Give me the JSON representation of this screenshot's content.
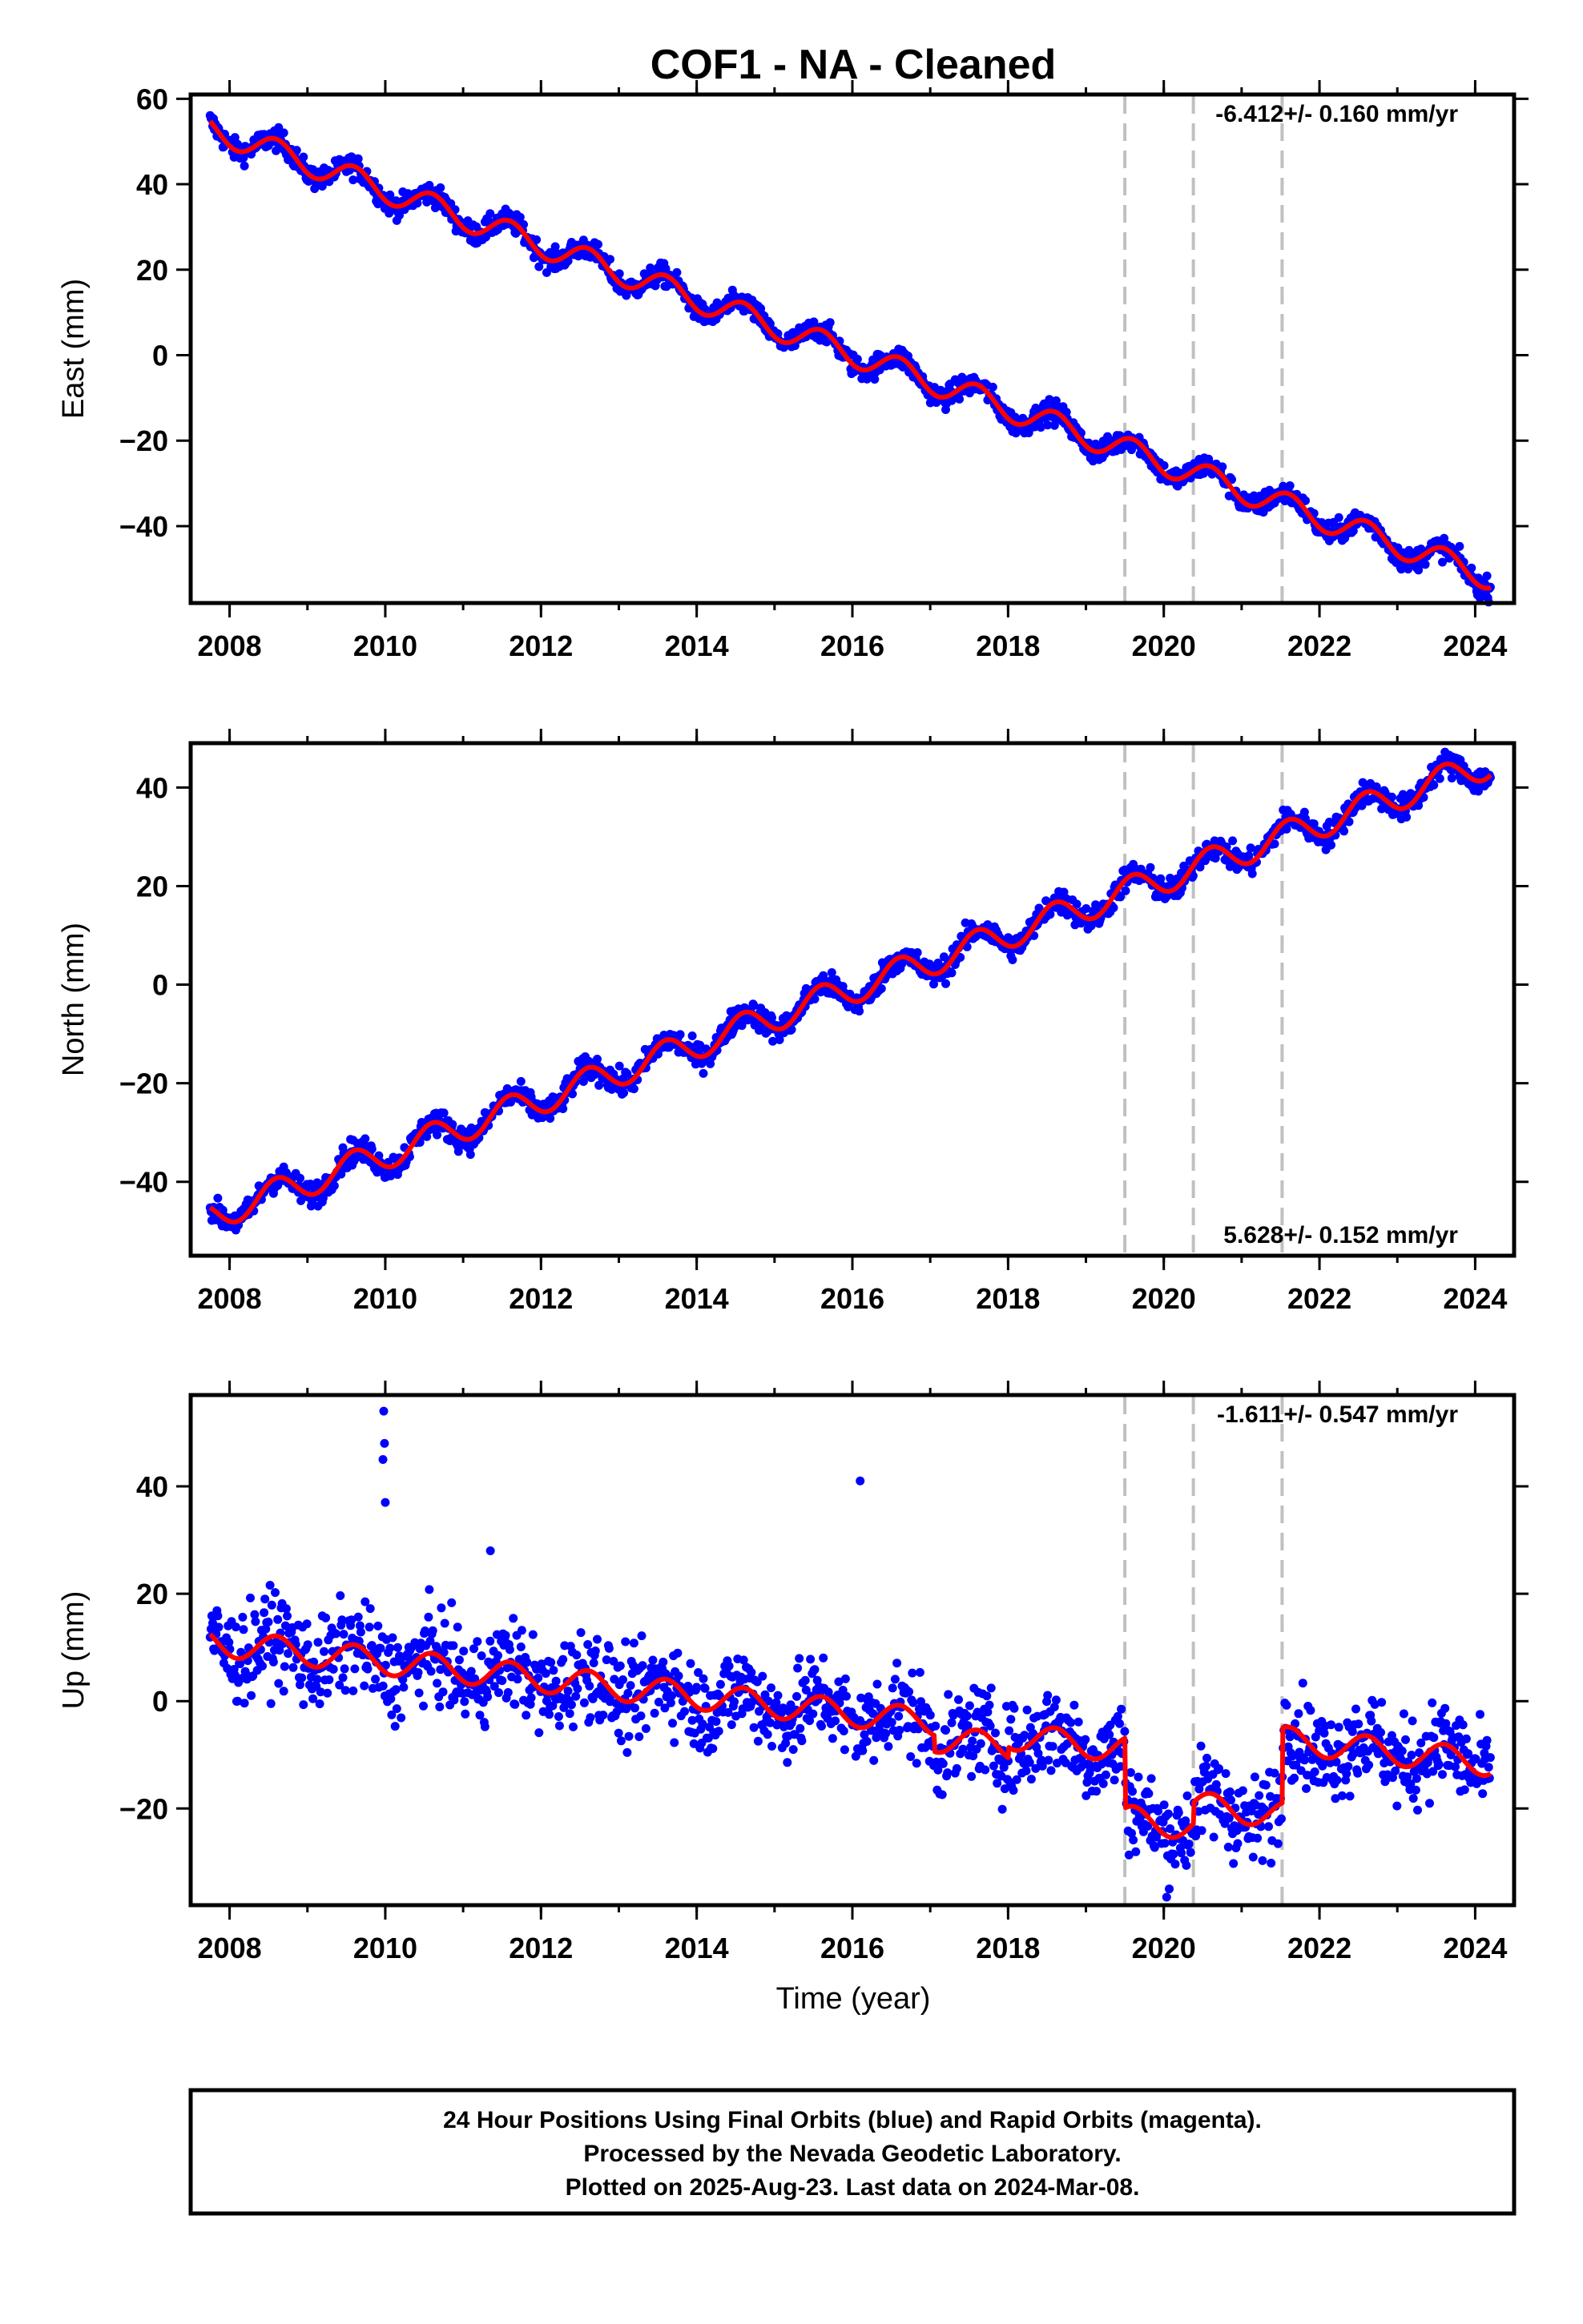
{
  "title": "COF1  - NA - Cleaned",
  "x_axis_label": "Time (year)",
  "footer": {
    "line1": "24 Hour Positions Using Final Orbits (blue) and Rapid Orbits (magenta).",
    "line2": "Processed by the Nevada Geodetic Laboratory.",
    "line3": "Plotted on 2025-Aug-23. Last data on 2024-Mar-08."
  },
  "colors": {
    "final_orbits": "#0000ff",
    "model": "#ff0000",
    "break_lines": "#c0c0c0",
    "frame": "#000000"
  },
  "chart_data": [
    {
      "type": "scatter",
      "component": "East",
      "ylabel": "East (mm)",
      "rate_label": "-6.412+/- 0.160 mm/yr",
      "xlim": [
        2007.5,
        2024.5
      ],
      "ylim": [
        -58,
        61
      ],
      "x_ticks": [
        2008,
        2010,
        2012,
        2014,
        2016,
        2018,
        2020,
        2022,
        2024
      ],
      "y_ticks": [
        -40,
        -20,
        0,
        20,
        40,
        60
      ],
      "break_lines_x": [
        2019.5,
        2020.38,
        2021.52
      ],
      "trend": {
        "x": [
          2007.75,
          2024.2
        ],
        "y": [
          53,
          -52
        ]
      },
      "seasonal_amplitude_mm": 3,
      "offsets": [],
      "series": [
        {
          "name": "Final Orbits",
          "kind": "daily positions"
        },
        {
          "name": "Model",
          "kind": "fitted model"
        }
      ]
    },
    {
      "type": "scatter",
      "component": "North",
      "ylabel": "North (mm)",
      "rate_label": "5.628+/- 0.152 mm/yr",
      "xlim": [
        2007.5,
        2024.5
      ],
      "ylim": [
        -55,
        49
      ],
      "x_ticks": [
        2008,
        2010,
        2012,
        2014,
        2016,
        2018,
        2020,
        2022,
        2024
      ],
      "y_ticks": [
        -40,
        -20,
        0,
        20,
        40
      ],
      "break_lines_x": [
        2019.5,
        2020.38,
        2021.52
      ],
      "trend": {
        "x": [
          2007.75,
          2024.2
        ],
        "y": [
          -47,
          45
        ]
      },
      "seasonal_amplitude_mm": 3,
      "offsets": [],
      "series": [
        {
          "name": "Final Orbits",
          "kind": "daily positions"
        },
        {
          "name": "Model",
          "kind": "fitted model"
        }
      ]
    },
    {
      "type": "scatter",
      "component": "Up",
      "ylabel": "Up (mm)",
      "rate_label": "-1.611+/- 0.547 mm/yr",
      "xlim": [
        2007.5,
        2024.5
      ],
      "ylim": [
        -38,
        57
      ],
      "x_ticks": [
        2008,
        2010,
        2012,
        2014,
        2016,
        2018,
        2020,
        2022,
        2024
      ],
      "y_ticks": [
        -20,
        0,
        20,
        40
      ],
      "break_lines_x": [
        2019.5,
        2020.38,
        2021.52
      ],
      "trend": {
        "x": [
          2007.75,
          2024.2
        ],
        "y": [
          11,
          -15.5
        ]
      },
      "seasonal_amplitude_mm": 2.5,
      "offsets": [
        {
          "from": 2017.05,
          "to": 2018.0,
          "shift": -3
        },
        {
          "from": 2018.0,
          "to": 2019.5,
          "shift": -1
        },
        {
          "from": 2019.5,
          "to": 2020.38,
          "shift": -14
        },
        {
          "from": 2020.38,
          "to": 2021.52,
          "shift": -10
        },
        {
          "from": 2021.52,
          "to": 2024.5,
          "shift": 4
        }
      ],
      "outliers": {
        "x": [
          2009.98,
          2009.99,
          2009.97,
          2010.0,
          2016.1,
          2011.35
        ],
        "y": [
          54,
          48,
          45,
          37,
          41,
          28
        ]
      },
      "series": [
        {
          "name": "Final Orbits",
          "kind": "daily positions"
        },
        {
          "name": "Model",
          "kind": "fitted model"
        }
      ]
    }
  ]
}
